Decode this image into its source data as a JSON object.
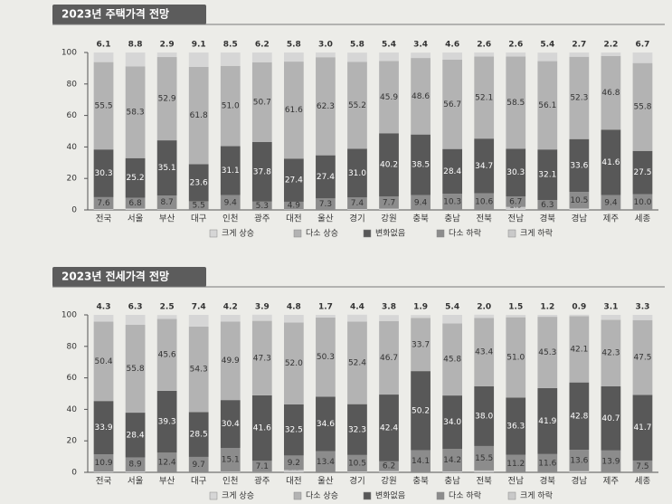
{
  "chart_data": [
    {
      "type": "stacked_bar",
      "title": "2023년 주택가격 전망",
      "categories": [
        "전국",
        "서울",
        "부산",
        "대구",
        "인천",
        "광주",
        "대전",
        "울산",
        "경기",
        "강원",
        "충북",
        "충남",
        "전북",
        "전남",
        "경북",
        "경남",
        "제주",
        "세종"
      ],
      "ylim": [
        0,
        100
      ],
      "yticks": [
        0,
        20,
        40,
        60,
        80,
        100
      ],
      "legend_order": [
        "크게 상승",
        "다소 상승",
        "변화없음",
        "다소 하락",
        "크게 하락"
      ],
      "series": [
        {
          "name": "크게 하락",
          "color": "#c9c9c9",
          "values": [
            0.5,
            0.9,
            0.4,
            0,
            0,
            0,
            0.3,
            0,
            0.5,
            0.8,
            0,
            0,
            0,
            1.9,
            0,
            0.9,
            0,
            0
          ],
          "value_labels": [
            "0.5",
            "0.9",
            "0.4",
            "0.0",
            "0.0",
            "0.0",
            "0.3",
            "0.0",
            "0.5",
            "0.8",
            "0.0",
            "0.0",
            "0.0",
            "1.9",
            "0.0",
            "0.9",
            "0.0",
            "0.0"
          ]
        },
        {
          "name": "다소 하락",
          "color": "#8c8c8c",
          "values": [
            7.6,
            6.8,
            8.7,
            5.5,
            9.4,
            5.3,
            4.9,
            7.3,
            7.4,
            7.7,
            9.4,
            10.3,
            10.6,
            6.7,
            6.3,
            10.5,
            9.4,
            10
          ],
          "value_labels": [
            "7.6",
            "6.8",
            "8.7",
            "5.5",
            "9.4",
            "5.3",
            "4.9",
            "7.3",
            "7.4",
            "7.7",
            "9.4",
            "10.3",
            "10.6",
            "6.7",
            "6.3",
            "10.5",
            "9.4",
            "10.0"
          ]
        },
        {
          "name": "변화없음",
          "color": "#585858",
          "values": [
            30.3,
            25.2,
            35.1,
            23.6,
            31.1,
            37.8,
            27.4,
            27.4,
            31,
            40.2,
            38.5,
            28.4,
            34.7,
            30.3,
            32.1,
            33.6,
            41.6,
            27.5
          ],
          "value_labels": [
            "30.3",
            "25.2",
            "35.1",
            "23.6",
            "31.1",
            "37.8",
            "27.4",
            "27.4",
            "31.0",
            "40.2",
            "38.5",
            "28.4",
            "34.7",
            "30.3",
            "32.1",
            "33.6",
            "41.6",
            "27.5"
          ]
        },
        {
          "name": "다소 상승",
          "color": "#b3b3b3",
          "values": [
            55.5,
            58.3,
            52.9,
            61.8,
            51,
            50.7,
            61.6,
            62.3,
            55.2,
            45.9,
            48.6,
            56.7,
            52.1,
            58.5,
            56.1,
            52.3,
            46.8,
            55.8
          ],
          "value_labels": [
            "55.5",
            "58.3",
            "52.9",
            "61.8",
            "51.0",
            "50.7",
            "61.6",
            "62.3",
            "55.2",
            "45.9",
            "48.6",
            "56.7",
            "52.1",
            "58.5",
            "56.1",
            "52.3",
            "46.8",
            "55.8"
          ]
        },
        {
          "name": "크게 상승",
          "color": "#d6d6d6",
          "values": [
            6.1,
            8.8,
            2.9,
            9.1,
            8.5,
            6.2,
            5.8,
            3,
            5.8,
            5.4,
            3.4,
            4.6,
            2.6,
            2.6,
            5.4,
            2.7,
            2.2,
            6.7
          ],
          "value_labels": [
            "6.1",
            "8.8",
            "2.9",
            "9.1",
            "8.5",
            "6.2",
            "5.8",
            "3.0",
            "5.8",
            "5.4",
            "3.4",
            "4.6",
            "2.6",
            "2.6",
            "5.4",
            "2.7",
            "2.2",
            "6.7"
          ]
        }
      ]
    },
    {
      "type": "stacked_bar",
      "title": "2023년 전세가격 전망",
      "categories": [
        "전국",
        "서울",
        "부산",
        "대구",
        "인천",
        "광주",
        "대전",
        "울산",
        "경기",
        "강원",
        "충북",
        "충남",
        "전북",
        "전남",
        "경북",
        "경남",
        "제주",
        "세종"
      ],
      "ylim": [
        0,
        100
      ],
      "yticks": [
        0,
        20,
        40,
        60,
        80,
        100
      ],
      "legend_order": [
        "크게 상승",
        "다소 상승",
        "변화없음",
        "다소 하락",
        "크게 하락"
      ],
      "series": [
        {
          "name": "크게 하락",
          "color": "#c9c9c9",
          "values": [
            0.5,
            0.6,
            0.1,
            0.1,
            0.4,
            0.2,
            1.5,
            0,
            0.5,
            0.8,
            0,
            0.6,
            1.2,
            0,
            0,
            0.7,
            0,
            0
          ],
          "value_labels": [
            "0.5",
            "0.6",
            "0.1",
            "0.1",
            "0.4",
            "0.2",
            "1.5",
            "0.0",
            "0.5",
            "0.8",
            "0.0",
            "0.6",
            "1.2",
            "0.0",
            "0.0",
            "0.7",
            "0.0",
            "0.0"
          ]
        },
        {
          "name": "다소 하락",
          "color": "#8c8c8c",
          "values": [
            10.9,
            8.9,
            12.4,
            9.7,
            15.1,
            7.1,
            9.2,
            13.4,
            10.5,
            6.2,
            14.1,
            14.2,
            15.5,
            11.2,
            11.6,
            13.6,
            13.9,
            7.5
          ],
          "value_labels": [
            "10.9",
            "8.9",
            "12.4",
            "9.7",
            "15.1",
            "7.1",
            "9.2",
            "13.4",
            "10.5",
            "6.2",
            "14.1",
            "14.2",
            "15.5",
            "11.2",
            "11.6",
            "13.6",
            "13.9",
            "7.5"
          ]
        },
        {
          "name": "변화없음",
          "color": "#585858",
          "values": [
            33.9,
            28.4,
            39.3,
            28.5,
            30.4,
            41.6,
            32.5,
            34.6,
            32.3,
            42.4,
            50.2,
            34,
            38,
            36.3,
            41.9,
            42.8,
            40.7,
            41.7
          ],
          "value_labels": [
            "33.9",
            "28.4",
            "39.3",
            "28.5",
            "30.4",
            "41.6",
            "32.5",
            "34.6",
            "32.3",
            "42.4",
            "50.2",
            "34.0",
            "38.0",
            "36.3",
            "41.9",
            "42.8",
            "40.7",
            "41.7"
          ]
        },
        {
          "name": "다소 상승",
          "color": "#b3b3b3",
          "values": [
            50.4,
            55.8,
            45.6,
            54.3,
            49.9,
            47.3,
            52,
            50.3,
            52.4,
            46.7,
            33.7,
            45.8,
            43.4,
            51,
            45.3,
            42.1,
            42.3,
            47.5
          ],
          "value_labels": [
            "50.4",
            "55.8",
            "45.6",
            "54.3",
            "49.9",
            "47.3",
            "52.0",
            "50.3",
            "52.4",
            "46.7",
            "33.7",
            "45.8",
            "43.4",
            "51.0",
            "45.3",
            "42.1",
            "42.3",
            "47.5"
          ]
        },
        {
          "name": "크게 상승",
          "color": "#d6d6d6",
          "values": [
            4.3,
            6.3,
            2.5,
            7.4,
            4.2,
            3.9,
            4.8,
            1.7,
            4.4,
            3.8,
            1.9,
            5.4,
            2,
            1.5,
            1.2,
            0.9,
            3.1,
            3.3
          ],
          "value_labels": [
            "4.3",
            "6.3",
            "2.5",
            "7.4",
            "4.2",
            "3.9",
            "4.8",
            "1.7",
            "4.4",
            "3.8",
            "1.9",
            "5.4",
            "2.0",
            "1.5",
            "1.2",
            "0.9",
            "3.1",
            "3.3"
          ]
        }
      ]
    }
  ]
}
